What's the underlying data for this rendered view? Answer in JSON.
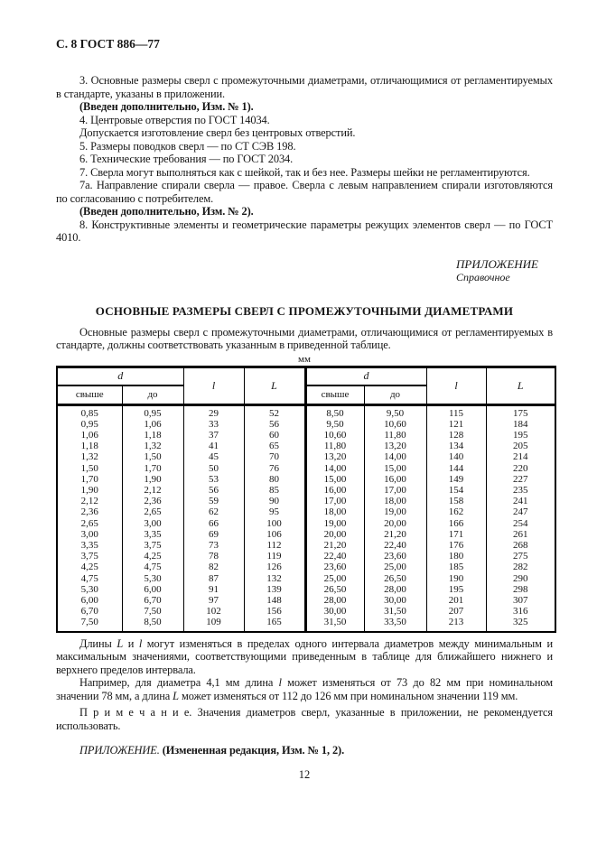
{
  "header": {
    "title": "С. 8 ГОСТ 886—77"
  },
  "clauses": {
    "c3": "3. Основные размеры сверл с промежуточными диаметрами, отличающимися от регламентируемых в стандарте, указаны в приложении.",
    "c3a": "(Введен дополнительно, Изм. № 1).",
    "c4": "4. Центровые отверстия по ГОСТ 14034.",
    "c4a": "Допускается изготовление сверл без центровых отверстий.",
    "c5": "5. Размеры поводков сверл — по СТ СЭВ 198.",
    "c6": "6. Технические требования — по ГОСТ 2034.",
    "c7": "7. Сверла могут выполняться как с шейкой, так и без нее. Размеры шейки не регламентируются.",
    "c7a": "7а. Направление спирали сверла — правое. Сверла с левым направлением спирали изготовляются по согласованию с потребителем.",
    "c7b": "(Введен дополнительно, Изм. № 2).",
    "c8": "8. Конструктивные элементы и геометрические параметры режущих элементов сверл — по ГОСТ 4010."
  },
  "appendix": {
    "line1": "ПРИЛОЖЕНИЕ",
    "line2": "Справочное",
    "title": "ОСНОВНЫЕ РАЗМЕРЫ СВЕРЛ С ПРОМЕЖУТОЧНЫМИ ДИАМЕТРАМИ",
    "intro": "Основные размеры сверл с промежуточными диаметрами, отличающимися от регламентируемых в стандарте, должны соответствовать указанным в приведенной таблице."
  },
  "table": {
    "units": "мм",
    "col_d": "d",
    "col_over": "свыше",
    "col_to": "до",
    "col_l": "l",
    "col_L": "L",
    "rows": [
      [
        "0,85",
        "0,95",
        "29",
        "52",
        "8,50",
        "9,50",
        "115",
        "175"
      ],
      [
        "0,95",
        "1,06",
        "33",
        "56",
        "9,50",
        "10,60",
        "121",
        "184"
      ],
      [
        "1,06",
        "1,18",
        "37",
        "60",
        "10,60",
        "11,80",
        "128",
        "195"
      ],
      [
        "1,18",
        "1,32",
        "41",
        "65",
        "11,80",
        "13,20",
        "134",
        "205"
      ],
      [
        "1,32",
        "1,50",
        "45",
        "70",
        "13,20",
        "14,00",
        "140",
        "214"
      ],
      [
        "1,50",
        "1,70",
        "50",
        "76",
        "14,00",
        "15,00",
        "144",
        "220"
      ],
      [
        "1,70",
        "1,90",
        "53",
        "80",
        "15,00",
        "16,00",
        "149",
        "227"
      ],
      [
        "1,90",
        "2,12",
        "56",
        "85",
        "16,00",
        "17,00",
        "154",
        "235"
      ],
      [
        "2,12",
        "2,36",
        "59",
        "90",
        "17,00",
        "18,00",
        "158",
        "241"
      ],
      [
        "2,36",
        "2,65",
        "62",
        "95",
        "18,00",
        "19,00",
        "162",
        "247"
      ],
      [
        "2,65",
        "3,00",
        "66",
        "100",
        "19,00",
        "20,00",
        "166",
        "254"
      ],
      [
        "3,00",
        "3,35",
        "69",
        "106",
        "20,00",
        "21,20",
        "171",
        "261"
      ],
      [
        "3,35",
        "3,75",
        "73",
        "112",
        "21,20",
        "22,40",
        "176",
        "268"
      ],
      [
        "3,75",
        "4,25",
        "78",
        "119",
        "22,40",
        "23,60",
        "180",
        "275"
      ],
      [
        "4,25",
        "4,75",
        "82",
        "126",
        "23,60",
        "25,00",
        "185",
        "282"
      ],
      [
        "4,75",
        "5,30",
        "87",
        "132",
        "25,00",
        "26,50",
        "190",
        "290"
      ],
      [
        "5,30",
        "6,00",
        "91",
        "139",
        "26,50",
        "28,00",
        "195",
        "298"
      ],
      [
        "6,00",
        "6,70",
        "97",
        "148",
        "28,00",
        "30,00",
        "201",
        "307"
      ],
      [
        "6,70",
        "7,50",
        "102",
        "156",
        "30,00",
        "31,50",
        "207",
        "316"
      ],
      [
        "7,50",
        "8,50",
        "109",
        "165",
        "31,50",
        "33,50",
        "213",
        "325"
      ]
    ]
  },
  "after_table": {
    "lengths": [
      "Длины ",
      "L",
      " и ",
      "l",
      " могут изменяться в пределах одного интервала диаметров между минимальным и максимальным значениями, соответствующими приведенным в таблице для ближайшего нижнего и верхнего пределов интервала."
    ],
    "example": [
      "Например, для диаметра 4,1 мм длина ",
      "l",
      " может изменяться от 73 до 82 мм при номинальном значении 78 мм, а длина ",
      "L",
      " может изменяться от 112 до 126 мм при номинальном значении 119 мм."
    ],
    "note_label": "П р и м е ч а н и е.",
    "note_text": "Значения диаметров сверл, указанные в приложении, не рекомендуется использовать."
  },
  "footer": {
    "italic_part": "ПРИЛОЖЕНИЕ.",
    "bold_part": "(Измененная редакция, Изм. № 1, 2).",
    "page_number": "12"
  }
}
